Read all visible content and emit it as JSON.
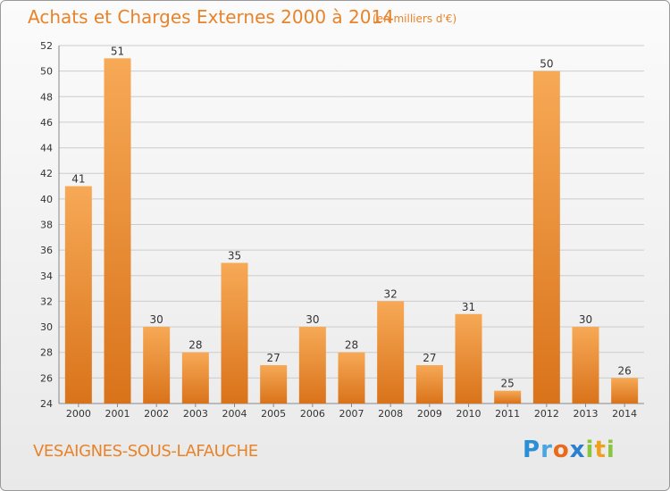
{
  "header": {
    "title": "Achats et Charges Externes 2000 à 2014",
    "subtitle": "(en milliers d'€)"
  },
  "footer": {
    "commune": "VESAIGNES-SOUS-LAFAUCHE",
    "logo_text": "Proxiti"
  },
  "colors": {
    "bar_light": "#f7a956",
    "bar_dark": "#d9731a",
    "title": "#e8832a",
    "grid": "#cccccc"
  },
  "chart_data": {
    "type": "bar",
    "categories": [
      "2000",
      "2001",
      "2002",
      "2003",
      "2004",
      "2005",
      "2006",
      "2007",
      "2008",
      "2009",
      "2010",
      "2011",
      "2012",
      "2013",
      "2014"
    ],
    "values": [
      41,
      51,
      30,
      28,
      35,
      27,
      30,
      28,
      32,
      27,
      31,
      25,
      50,
      30,
      26
    ],
    "data_labels": [
      "41",
      "51",
      "30",
      "28",
      "35",
      "27",
      "30",
      "28",
      "32",
      "27",
      "31",
      "25",
      "50",
      "30",
      "26"
    ],
    "title": "Achats et Charges Externes 2000 à 2014",
    "xlabel": "",
    "ylabel": "",
    "ylim": [
      24,
      52
    ],
    "yticks": [
      24,
      26,
      28,
      30,
      32,
      34,
      36,
      38,
      40,
      42,
      44,
      46,
      48,
      50,
      52
    ],
    "grid": true
  }
}
